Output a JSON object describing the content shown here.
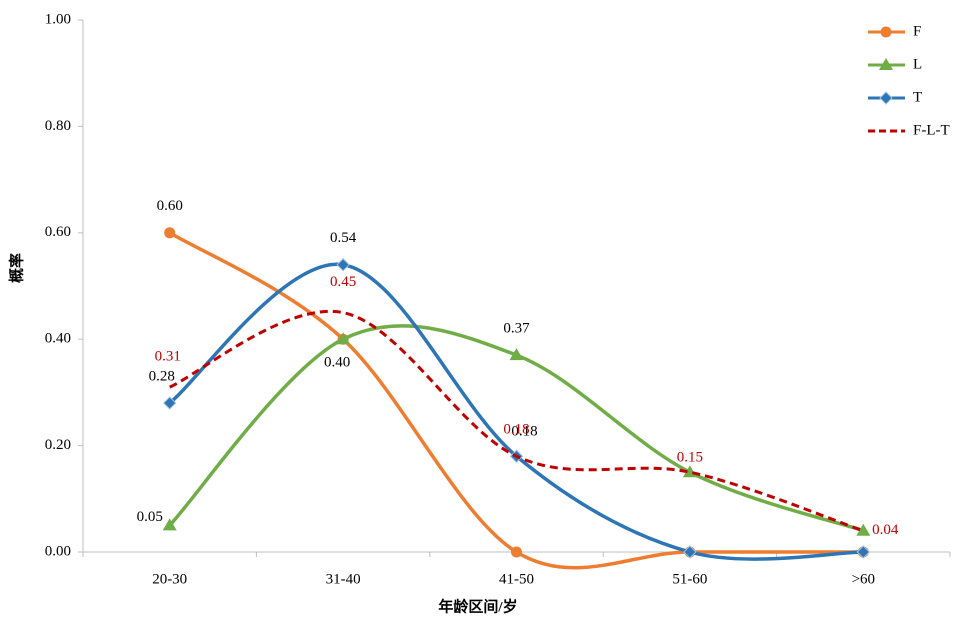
{
  "chart_data": {
    "type": "line",
    "xlabel": "年龄区间/岁",
    "ylabel": "概率",
    "categories": [
      "20-30",
      "31-40",
      "41-50",
      "51-60",
      ">60"
    ],
    "ylim": [
      0,
      1
    ],
    "yticks": [
      {
        "value": 0,
        "label": "0.00"
      },
      {
        "value": 0.2,
        "label": "0.20"
      },
      {
        "value": 0.4,
        "label": "0.40"
      },
      {
        "value": 0.6,
        "label": "0.60"
      },
      {
        "value": 0.8,
        "label": "0.80"
      },
      {
        "value": 1,
        "label": "1.00"
      }
    ],
    "smooth": true,
    "legend": "top-right",
    "series": [
      {
        "name": "F",
        "color": "#ed7d31",
        "marker": "circle",
        "values": [
          0.6,
          0.4,
          0,
          0,
          0
        ],
        "value_labels": [
          "0.60",
          null,
          null,
          null,
          null
        ],
        "label_color": "#000000"
      },
      {
        "name": "L",
        "color": "#70ad47",
        "marker": "triangle",
        "values": [
          0.05,
          0.4,
          0.37,
          0.15,
          0.04
        ],
        "value_labels": [
          "0.05",
          "0.40",
          "0.37",
          null,
          null
        ],
        "label_color": "#000000"
      },
      {
        "name": "T",
        "color": "#2e75b6",
        "marker": "diamond",
        "values": [
          0.28,
          0.54,
          0.18,
          0,
          0
        ],
        "value_labels": [
          "0.28",
          "0.54",
          "0.18",
          null,
          null
        ],
        "label_color": "#000000"
      },
      {
        "name": "F-L-T",
        "color": "#c00000",
        "dash": true,
        "values": [
          0.31,
          0.45,
          0.18,
          0.15,
          0.04
        ],
        "value_labels": [
          "0.31",
          "0.45",
          "0.18",
          "0.15",
          "0.04"
        ],
        "label_color": "#c00000"
      }
    ]
  }
}
